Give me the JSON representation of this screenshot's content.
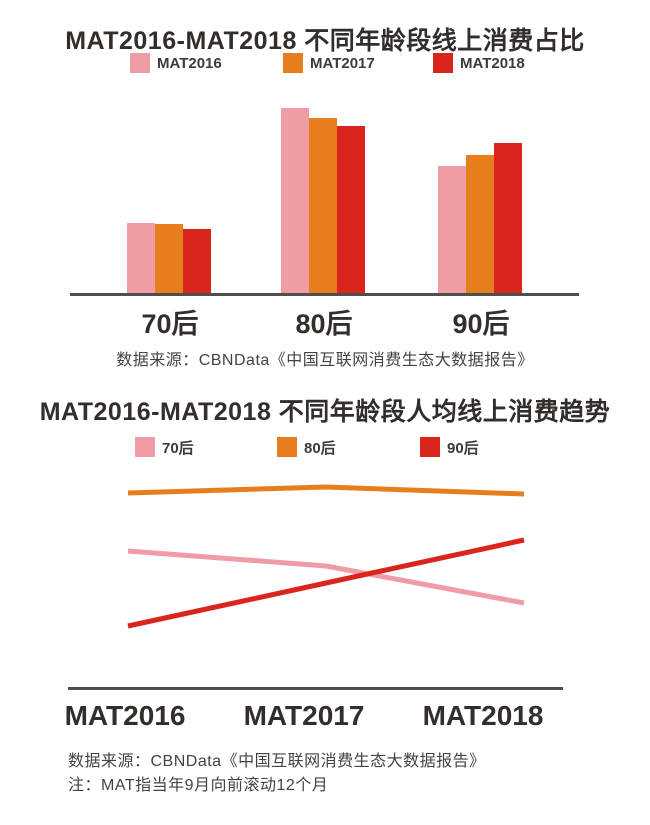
{
  "colors": {
    "pink": "#F09CA6",
    "orange": "#E67E1D",
    "red": "#D9251C",
    "axis": "#4F4F4F",
    "title_text": "#332E2B",
    "source_text": "#474140"
  },
  "chart1": {
    "title": "MAT2016-MAT2018 不同年龄段线上消费占比",
    "legend": [
      {
        "label": "MAT2016",
        "color": "#F09CA6"
      },
      {
        "label": "MAT2017",
        "color": "#E67E1D"
      },
      {
        "label": "MAT2018",
        "color": "#D9251C"
      }
    ],
    "source": "数据来源：CBNData《中国互联网消费生态大数据报告》"
  },
  "chart2": {
    "title": "MAT2016-MAT2018 不同年龄段人均线上消费趋势",
    "legend": [
      {
        "label": "70后",
        "color": "#F09CA6"
      },
      {
        "label": "80后",
        "color": "#E67E1D"
      },
      {
        "label": "90后",
        "color": "#D9251C"
      }
    ],
    "source": "数据来源：CBNData《中国互联网消费生态大数据报告》",
    "note": "注：MAT指当年9月向前滚动12个月"
  },
  "chart_data": [
    {
      "type": "bar",
      "title": "MAT2016-MAT2018 不同年龄段线上消费占比",
      "categories": [
        "70后",
        "80后",
        "90后"
      ],
      "series": [
        {
          "name": "MAT2016",
          "color": "#F09CA6",
          "values": [
            18.3,
            48.4,
            33.2
          ]
        },
        {
          "name": "MAT2017",
          "color": "#E67E1D",
          "values": [
            18.1,
            45.8,
            36.1
          ]
        },
        {
          "name": "MAT2018",
          "color": "#D9251C",
          "values": [
            16.8,
            43.7,
            39.2
          ]
        }
      ],
      "xlabel": "",
      "ylabel": "",
      "units": "estimated share %, no value labels or y-axis shown in figure",
      "ylim": [
        0,
        50
      ],
      "grid": false,
      "legend_position": "top"
    },
    {
      "type": "line",
      "title": "MAT2016-MAT2018 不同年龄段人均线上消费趋势",
      "x": [
        "MAT2016",
        "MAT2017",
        "MAT2018"
      ],
      "series": [
        {
          "name": "70后",
          "color": "#F09CA6",
          "values": [
            68.5,
            61.0,
            42.5
          ]
        },
        {
          "name": "80后",
          "color": "#E67E1D",
          "values": [
            97.5,
            100.5,
            97.0
          ]
        },
        {
          "name": "90后",
          "color": "#D9251C",
          "values": [
            31.0,
            52.5,
            74.0
          ]
        }
      ],
      "xlabel": "",
      "ylabel": "",
      "units": "estimated relative index, no value labels or y-axis shown in figure",
      "ylim": [
        0,
        110
      ],
      "grid": false,
      "legend_position": "top"
    }
  ]
}
